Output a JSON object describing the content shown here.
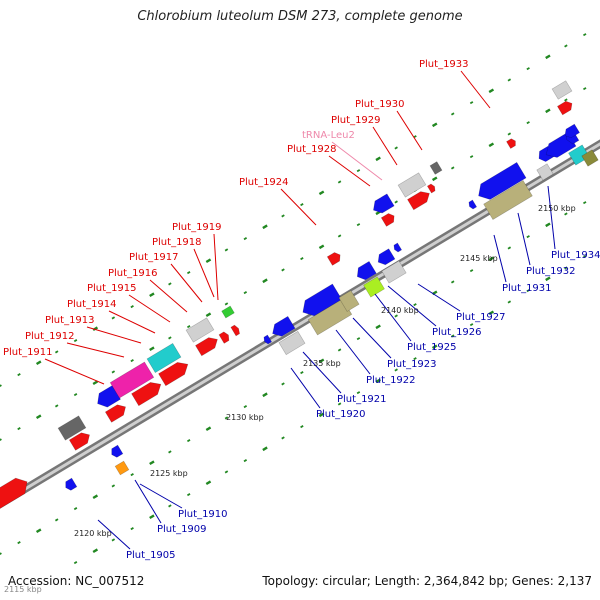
{
  "title": "Chlorobium luteolum DSM 273, complete genome",
  "footer": {
    "accession": "Accession: NC_007512",
    "summary": "Topology: circular; Length: 2,364,842 bp; Genes: 2,137"
  },
  "corner_label": "2115 kbp",
  "axis_ticks": [
    "2120 kbp",
    "2125 kbp",
    "2130 kbp",
    "2135 kbp",
    "2140 kbp",
    "2145 kbp",
    "2150 kbp"
  ],
  "upper_labels": [
    "Plut_1911",
    "Plut_1912",
    "Plut_1913",
    "Plut_1914",
    "Plut_1915",
    "Plut_1916",
    "Plut_1917",
    "Plut_1918",
    "Plut_1919",
    "Plut_1924",
    "Plut_1928",
    "tRNA-Leu2",
    "Plut_1929",
    "Plut_1930",
    "Plut_1933"
  ],
  "lower_labels": [
    "Plut_1905",
    "Plut_1909",
    "Plut_1910",
    "Plut_1920",
    "Plut_1921",
    "Plut_1922",
    "Plut_1923",
    "Plut_1925",
    "Plut_1926",
    "Plut_1927",
    "Plut_1931",
    "Plut_1932",
    "Plut_1934"
  ],
  "colors": {
    "upper_label": "#dd0000",
    "trna_label": "#ee88aa",
    "lower_label": "#0000aa",
    "forward_gene": "#ee1111",
    "reverse_gene": "#1111ee",
    "axis": "#999999",
    "tick_dots": "#228822"
  }
}
